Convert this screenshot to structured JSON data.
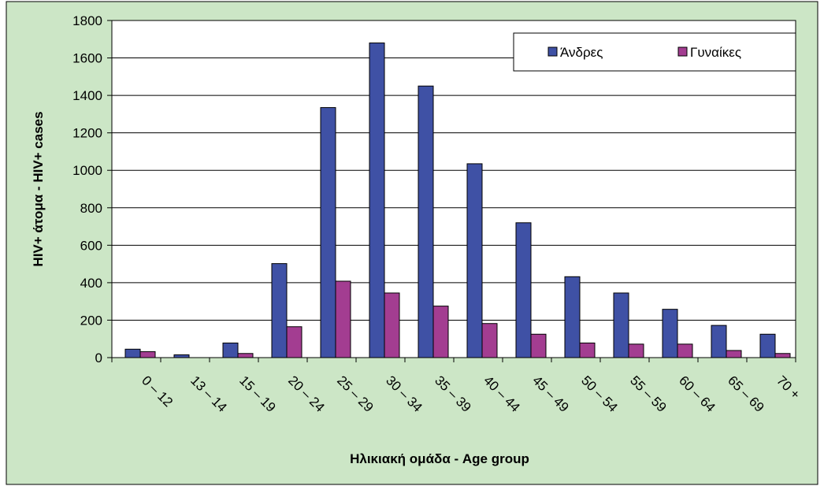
{
  "chart_data": {
    "type": "bar",
    "categories": [
      "0 – 12",
      "13 – 14",
      "15 – 19",
      "20 – 24",
      "25 – 29",
      "30 – 34",
      "35 – 39",
      "40 – 44",
      "45 – 49",
      "50 – 54",
      "55 – 59",
      "60 – 64",
      "65 – 69",
      "70 +"
    ],
    "series": [
      {
        "name": "Άνδρες",
        "color": "#3f51a5",
        "values": [
          45,
          15,
          78,
          502,
          1335,
          1680,
          1450,
          1035,
          720,
          432,
          345,
          258,
          172,
          125
        ]
      },
      {
        "name": "Γυναίκες",
        "color": "#a33d91",
        "values": [
          32,
          0,
          22,
          165,
          408,
          345,
          275,
          182,
          125,
          78,
          72,
          72,
          38,
          22
        ]
      }
    ],
    "title": "",
    "xlabel": "Ηλικιακή ομάδα - Age group",
    "ylabel": "HIV+ άτομα - HIV+ cases",
    "ylim": [
      0,
      1800
    ],
    "yticks": [
      0,
      200,
      400,
      600,
      800,
      1000,
      1200,
      1400,
      1600,
      1800
    ],
    "grid": true,
    "legend_position": "top-right",
    "background_color": "#cce6c6",
    "plot_background_color": "#ffffff"
  }
}
